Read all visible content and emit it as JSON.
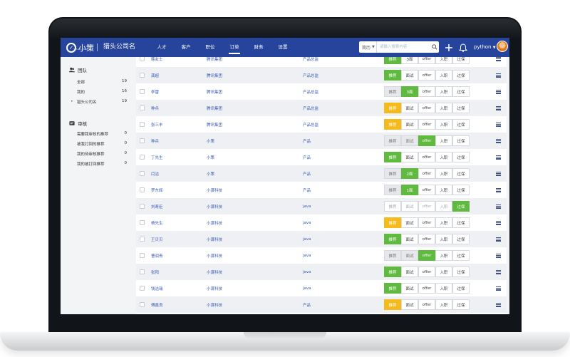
{
  "header": {
    "logo_text": "小策",
    "logo_sub": "SMALL BU",
    "company": "猎头公司名",
    "nav": [
      "人才",
      "客户",
      "职位",
      "订单",
      "财务",
      "设置"
    ],
    "nav_active": 3,
    "search": {
      "type_label": "简历",
      "placeholder": "请输入搜索内容"
    },
    "user": "python"
  },
  "sidebar": {
    "team": {
      "title": "团队",
      "items": [
        {
          "label": "全部",
          "count": "19"
        },
        {
          "label": "我的",
          "count": "16"
        },
        {
          "label": "猎头公司名",
          "count": "19"
        }
      ]
    },
    "review": {
      "title": "审核",
      "items": [
        {
          "label": "需要我审核的推荐",
          "count": "0"
        },
        {
          "label": "被我打回的推荐",
          "count": "0"
        },
        {
          "label": "我的待审核推荐",
          "count": "0"
        },
        {
          "label": "我的被打回推荐",
          "count": "0"
        }
      ]
    }
  },
  "stage_labels": [
    "推荐",
    "面试",
    "offer",
    "入职",
    "过保"
  ],
  "rows": [
    {
      "name": "韩女士",
      "company": "腾讯集团",
      "position": "产品总监",
      "s2": "3面",
      "styles": [
        "green",
        "white",
        "white",
        "white",
        "white"
      ]
    },
    {
      "name": "龚超",
      "company": "腾讯集团",
      "position": "产品总监",
      "s2": "面试",
      "styles": [
        "green",
        "white",
        "white",
        "white",
        "white"
      ]
    },
    {
      "name": "李雷",
      "company": "腾讯集团",
      "position": "产品总监",
      "s2": "3面",
      "styles": [
        "gray",
        "green",
        "white",
        "white",
        "white"
      ]
    },
    {
      "name": "种兵",
      "company": "腾讯集团",
      "position": "产品总监",
      "s2": "面试",
      "styles": [
        "yellow",
        "white",
        "white",
        "white",
        "white"
      ]
    },
    {
      "name": "张三丰",
      "company": "腾讯集团",
      "position": "产品总监",
      "s2": "面试",
      "styles": [
        "yellow",
        "white",
        "white",
        "white",
        "white"
      ]
    },
    {
      "name": "种兵",
      "company": "小策",
      "position": "产品",
      "s2": "面试",
      "styles": [
        "gray",
        "gray",
        "green",
        "white",
        "white"
      ]
    },
    {
      "name": "丁先生",
      "company": "小策",
      "position": "产品",
      "s2": "面试",
      "styles": [
        "green",
        "white",
        "white",
        "white",
        "white"
      ]
    },
    {
      "name": "闫洁",
      "company": "小策",
      "position": "产品",
      "s2": "2面",
      "styles": [
        "gray",
        "green",
        "white",
        "white",
        "white"
      ]
    },
    {
      "name": "罗东辉",
      "company": "小谋科技",
      "position": "产品",
      "s2": "1面",
      "styles": [
        "gray",
        "green",
        "white",
        "white",
        "white"
      ]
    },
    {
      "name": "刘寿臣",
      "company": "小谋科技",
      "position": "java",
      "s2": "面试",
      "styles": [
        "faded",
        "faded",
        "faded",
        "faded",
        "green"
      ]
    },
    {
      "name": "杨先生",
      "company": "小谋科技",
      "position": "java",
      "s2": "面试",
      "styles": [
        "yellow",
        "white",
        "white",
        "white",
        "white"
      ]
    },
    {
      "name": "王贝贝",
      "company": "小谋科技",
      "position": "java",
      "s2": "面试",
      "styles": [
        "green",
        "white",
        "white",
        "white",
        "white"
      ]
    },
    {
      "name": "曹润青",
      "company": "小谋科技",
      "position": "java",
      "s2": "面试",
      "styles": [
        "gray",
        "gray",
        "green",
        "white",
        "white"
      ]
    },
    {
      "name": "张阳",
      "company": "小谋科技",
      "position": "java",
      "s2": "面试",
      "styles": [
        "green",
        "white",
        "white",
        "white",
        "white"
      ]
    },
    {
      "name": "钱洁瑞",
      "company": "小谋科技",
      "position": "java",
      "s2": "面试",
      "styles": [
        "green",
        "white",
        "white",
        "white",
        "white"
      ]
    },
    {
      "name": "傅鑫良",
      "company": "小谋科技",
      "position": "产品",
      "s2": "面试",
      "styles": [
        "yellow",
        "white",
        "white",
        "white",
        "white"
      ]
    },
    {
      "name": "",
      "company": "",
      "position": "",
      "s2": "面试",
      "styles": [
        "yellow",
        "white",
        "white",
        "white",
        "white"
      ]
    }
  ],
  "colors": {
    "topbar": "#26449c",
    "green": "#5fba3f",
    "yellow": "#f5bb1c",
    "link": "#3a5ab5"
  }
}
